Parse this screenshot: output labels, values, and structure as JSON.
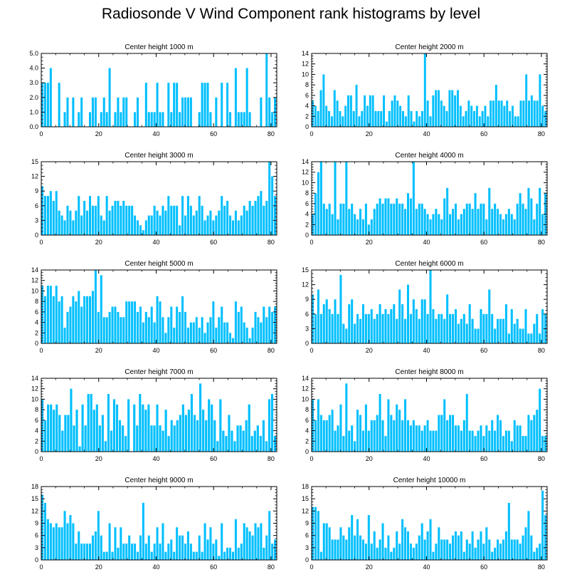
{
  "title": "Radiosonde V Wind Component rank histograms by level",
  "colors": {
    "bar": "#00bfff",
    "axis": "#000000",
    "background": "#ffffff"
  },
  "chart_data": [
    {
      "type": "bar",
      "title": "Center height 1000 m",
      "xlim": [
        0,
        82
      ],
      "ylim": [
        0,
        5
      ],
      "xticks": [
        0,
        20,
        40,
        60,
        80
      ],
      "yticks": [
        "0.0",
        "1.0",
        "2.0",
        "3.0",
        "4.0",
        "5.0"
      ],
      "values": [
        3,
        3,
        3,
        4,
        0,
        0,
        3,
        0,
        1,
        2,
        0,
        2,
        0,
        1,
        2,
        0,
        0,
        1,
        2,
        2,
        0,
        1,
        2,
        1,
        4,
        0,
        1,
        2,
        1,
        2,
        2,
        0,
        0,
        1,
        2,
        0,
        0,
        3,
        1,
        1,
        1,
        3,
        1,
        1,
        0,
        3,
        1,
        3,
        3,
        1,
        2,
        2,
        2,
        2,
        0,
        0,
        1,
        3,
        3,
        3,
        1,
        0,
        2,
        0,
        3,
        0,
        3,
        1,
        0,
        4,
        1,
        1,
        1,
        4,
        1,
        0,
        0,
        0,
        2,
        0,
        5,
        2,
        1,
        2
      ]
    },
    {
      "type": "bar",
      "title": "Center height 2000 m",
      "xlim": [
        0,
        82
      ],
      "ylim": [
        0,
        14
      ],
      "xticks": [
        0,
        20,
        40,
        60,
        80
      ],
      "yticks": [
        "0",
        "2",
        "4",
        "6",
        "8",
        "10",
        "12",
        "14"
      ],
      "values": [
        5,
        4,
        3,
        7,
        10,
        4,
        3,
        2,
        7,
        5,
        3,
        2,
        4,
        6,
        6,
        3,
        8,
        2,
        3,
        6,
        4,
        6,
        6,
        3,
        3,
        3,
        6,
        1,
        3,
        5,
        6,
        5,
        4,
        3,
        2,
        6,
        3,
        1,
        3,
        2,
        3,
        14,
        5,
        2,
        6,
        7,
        7,
        5,
        4,
        3,
        7,
        7,
        6,
        7,
        4,
        2,
        3,
        5,
        4,
        3,
        4,
        2,
        3,
        4,
        2,
        5,
        5,
        8,
        5,
        5,
        4,
        5,
        3,
        4,
        2,
        2,
        5,
        5,
        10,
        5,
        6,
        5,
        5,
        10,
        4,
        3
      ]
    },
    {
      "type": "bar",
      "title": "Center height 3000 m",
      "xlim": [
        0,
        82
      ],
      "ylim": [
        0,
        15
      ],
      "xticks": [
        0,
        20,
        40,
        60,
        80
      ],
      "yticks": [
        "0",
        "3",
        "6",
        "9",
        "12",
        "15"
      ],
      "values": [
        10,
        8,
        8,
        9,
        7,
        9,
        5,
        4,
        3,
        6,
        5,
        3,
        5,
        8,
        4,
        7,
        5,
        8,
        6,
        6,
        8,
        4,
        3,
        8,
        5,
        6,
        7,
        7,
        6,
        7,
        6,
        6,
        6,
        4,
        3,
        2,
        1,
        3,
        4,
        4,
        6,
        5,
        4,
        6,
        5,
        8,
        6,
        6,
        6,
        2,
        8,
        4,
        8,
        6,
        4,
        5,
        8,
        6,
        3,
        4,
        5,
        3,
        4,
        5,
        8,
        6,
        7,
        4,
        3,
        5,
        3,
        4,
        6,
        5,
        7,
        6,
        7,
        8,
        9,
        6,
        7,
        15,
        12,
        8
      ]
    },
    {
      "type": "bar",
      "title": "Center height 4000 m",
      "xlim": [
        0,
        82
      ],
      "ylim": [
        0,
        14
      ],
      "xticks": [
        0,
        20,
        40,
        60,
        80
      ],
      "yticks": [
        "0",
        "2",
        "4",
        "6",
        "8",
        "10",
        "12",
        "14"
      ],
      "values": [
        4,
        8,
        12,
        14,
        6,
        5,
        6,
        4,
        14,
        3,
        6,
        6,
        14,
        5,
        6,
        4,
        3,
        5,
        3,
        6,
        2,
        3,
        5,
        6,
        7,
        6,
        7,
        7,
        6,
        6,
        7,
        6,
        6,
        5,
        8,
        7,
        14,
        5,
        6,
        6,
        5,
        4,
        3,
        4,
        5,
        4,
        3,
        7,
        9,
        4,
        5,
        6,
        3,
        4,
        5,
        6,
        6,
        5,
        8,
        5,
        6,
        6,
        3,
        9,
        5,
        6,
        5,
        4,
        3,
        4,
        5,
        4,
        3,
        6,
        8,
        6,
        5,
        9,
        7,
        3,
        6,
        9,
        4,
        8
      ]
    },
    {
      "type": "bar",
      "title": "Center height 5000 m",
      "xlim": [
        0,
        82
      ],
      "ylim": [
        0,
        14
      ],
      "xticks": [
        0,
        20,
        40,
        60,
        80
      ],
      "yticks": [
        "0",
        "2",
        "4",
        "6",
        "8",
        "10",
        "12",
        "14"
      ],
      "values": [
        11,
        9,
        11,
        11,
        9,
        11,
        8,
        9,
        3,
        6,
        7,
        9,
        8,
        10,
        7,
        9,
        9,
        9,
        10,
        14,
        6,
        13,
        5,
        5,
        6,
        7,
        7,
        6,
        5,
        5,
        8,
        8,
        8,
        8,
        6,
        7,
        4,
        6,
        5,
        7,
        4,
        9,
        8,
        5,
        2,
        5,
        7,
        3,
        7,
        6,
        9,
        6,
        3,
        4,
        4,
        5,
        3,
        5,
        2,
        4,
        5,
        8,
        3,
        5,
        7,
        4,
        4,
        2,
        1,
        8,
        6,
        7,
        4,
        3,
        1,
        3,
        6,
        5,
        4,
        7,
        5,
        7,
        6,
        7
      ]
    },
    {
      "type": "bar",
      "title": "Center height 6000 m",
      "xlim": [
        0,
        82
      ],
      "ylim": [
        0,
        15
      ],
      "xticks": [
        0,
        20,
        40,
        60,
        80
      ],
      "yticks": [
        "0",
        "3",
        "6",
        "9",
        "12",
        "15"
      ],
      "values": [
        10,
        6,
        11,
        6,
        8,
        9,
        7,
        6,
        9,
        6,
        14,
        4,
        3,
        8,
        9,
        4,
        6,
        5,
        8,
        6,
        6,
        7,
        5,
        6,
        8,
        6,
        7,
        6,
        7,
        8,
        5,
        11,
        8,
        5,
        12,
        6,
        9,
        7,
        5,
        9,
        9,
        6,
        15,
        7,
        5,
        6,
        6,
        5,
        10,
        6,
        6,
        7,
        4,
        5,
        6,
        4,
        8,
        5,
        3,
        3,
        7,
        6,
        6,
        11,
        6,
        3,
        5,
        5,
        5,
        8,
        2,
        7,
        4,
        5,
        3,
        3,
        7,
        2,
        2,
        4,
        6,
        2,
        7,
        6
      ]
    },
    {
      "type": "bar",
      "title": "Center height 7000 m",
      "xlim": [
        0,
        82
      ],
      "ylim": [
        0,
        14
      ],
      "xticks": [
        0,
        20,
        40,
        60,
        80
      ],
      "yticks": [
        "0",
        "2",
        "4",
        "6",
        "8",
        "10",
        "12",
        "14"
      ],
      "values": [
        10,
        6,
        9,
        9,
        8,
        9,
        7,
        4,
        7,
        7,
        12,
        5,
        8,
        1,
        9,
        5,
        11,
        11,
        8,
        9,
        5,
        7,
        2,
        11,
        4,
        10,
        9,
        6,
        5,
        3,
        10,
        0,
        9,
        5,
        11,
        9,
        8,
        9,
        5,
        5,
        9,
        5,
        4,
        8,
        3,
        6,
        5,
        6,
        7,
        9,
        7,
        8,
        11,
        7,
        6,
        13,
        8,
        6,
        10,
        9,
        6,
        2,
        10,
        4,
        3,
        7,
        4,
        2,
        5,
        5,
        4,
        6,
        9,
        3,
        4,
        5,
        3,
        6,
        2,
        10,
        11,
        3
      ]
    },
    {
      "type": "bar",
      "title": "Center height 8000 m",
      "xlim": [
        0,
        82
      ],
      "ylim": [
        0,
        14
      ],
      "xticks": [
        0,
        20,
        40,
        60,
        80
      ],
      "yticks": [
        "0",
        "2",
        "4",
        "6",
        "8",
        "10",
        "12",
        "14"
      ],
      "values": [
        10,
        6,
        10,
        7,
        6,
        6,
        7,
        8,
        4,
        5,
        9,
        3,
        13,
        4,
        5,
        2,
        8,
        7,
        4,
        9,
        4,
        6,
        6,
        7,
        11,
        6,
        3,
        10,
        7,
        6,
        9,
        8,
        6,
        10,
        6,
        5,
        6,
        5,
        5,
        4,
        5,
        6,
        4,
        4,
        4,
        7,
        7,
        10,
        6,
        7,
        7,
        5,
        5,
        4,
        6,
        11,
        4,
        4,
        3,
        4,
        5,
        3,
        5,
        4,
        6,
        4,
        7,
        6,
        3,
        4,
        4,
        2,
        6,
        5,
        5,
        3,
        3,
        7,
        6,
        7,
        8,
        12,
        3,
        3
      ]
    },
    {
      "type": "bar",
      "title": "Center height 9000 m",
      "xlim": [
        0,
        82
      ],
      "ylim": [
        0,
        18
      ],
      "xticks": [
        0,
        20,
        40,
        60,
        80
      ],
      "yticks": [
        "0",
        "3",
        "6",
        "9",
        "12",
        "15",
        "18"
      ],
      "values": [
        16,
        14,
        10,
        9,
        8,
        9,
        8,
        8,
        12,
        9,
        11,
        9,
        4,
        7,
        4,
        4,
        4,
        4,
        6,
        7,
        12,
        6,
        2,
        2,
        9,
        2,
        8,
        3,
        8,
        4,
        4,
        6,
        4,
        4,
        2,
        6,
        14,
        4,
        6,
        2,
        4,
        8,
        4,
        9,
        2,
        4,
        5,
        2,
        8,
        6,
        6,
        4,
        7,
        4,
        2,
        2,
        6,
        2,
        9,
        5,
        8,
        4,
        5,
        1,
        9,
        2,
        3,
        3,
        2,
        10,
        3,
        4,
        9,
        8,
        7,
        6,
        9,
        8,
        9,
        3,
        6,
        12,
        4,
        5
      ]
    },
    {
      "type": "bar",
      "title": "Center height 10000 m",
      "xlim": [
        0,
        82
      ],
      "ylim": [
        0,
        18
      ],
      "xticks": [
        0,
        20,
        40,
        60,
        80
      ],
      "yticks": [
        "0",
        "3",
        "6",
        "9",
        "12",
        "15",
        "18"
      ],
      "values": [
        13,
        13,
        12,
        2,
        9,
        9,
        8,
        5,
        5,
        5,
        8,
        6,
        5,
        8,
        11,
        6,
        10,
        6,
        5,
        4,
        11,
        4,
        7,
        3,
        5,
        9,
        3,
        6,
        2,
        3,
        7,
        4,
        10,
        8,
        7,
        4,
        3,
        4,
        6,
        9,
        5,
        7,
        10,
        2,
        4,
        8,
        5,
        5,
        5,
        4,
        6,
        7,
        6,
        7,
        2,
        5,
        4,
        7,
        3,
        5,
        7,
        4,
        8,
        5,
        2,
        3,
        5,
        4,
        5,
        7,
        14,
        5,
        5,
        5,
        4,
        6,
        8,
        12,
        6,
        2,
        3,
        4,
        17,
        11
      ]
    }
  ]
}
